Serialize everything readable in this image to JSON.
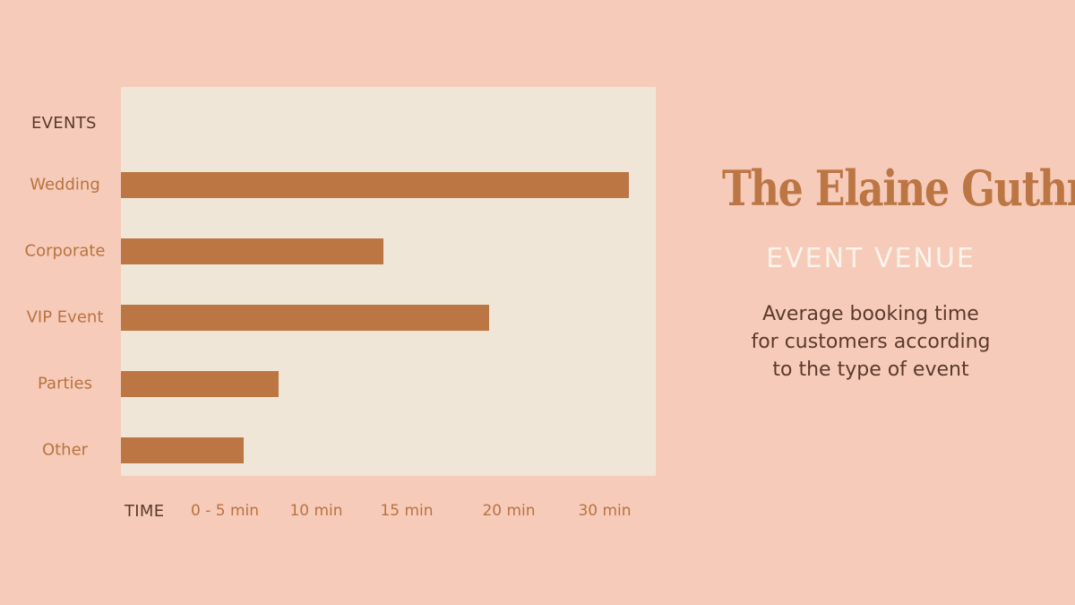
{
  "chart_data": {
    "type": "bar",
    "orientation": "horizontal",
    "y_axis_title": "EVENTS",
    "x_axis_title": "TIME",
    "categories": [
      "Wedding",
      "Corporate",
      "VIP Event",
      "Parties",
      "Other"
    ],
    "values_minutes": [
      29,
      15,
      21,
      9,
      7
    ],
    "x_tick_labels": [
      "0 - 5 min",
      "10 min",
      "15 min",
      "20 min",
      "30 min"
    ],
    "bar_color": "#bc7644",
    "panel_color": "#efe6d8",
    "grid": false,
    "legend": "none"
  },
  "brand": {
    "title": "The Elaine Guthrie",
    "subtitle": "EVENT VENUE"
  },
  "description_lines": [
    "Average booking time",
    "for customers according",
    "to the type of event"
  ],
  "colors": {
    "background": "#f6cbb9",
    "accent": "#bc7644",
    "dark_text": "#5b3a2c",
    "light_text": "#fbf3ea"
  }
}
